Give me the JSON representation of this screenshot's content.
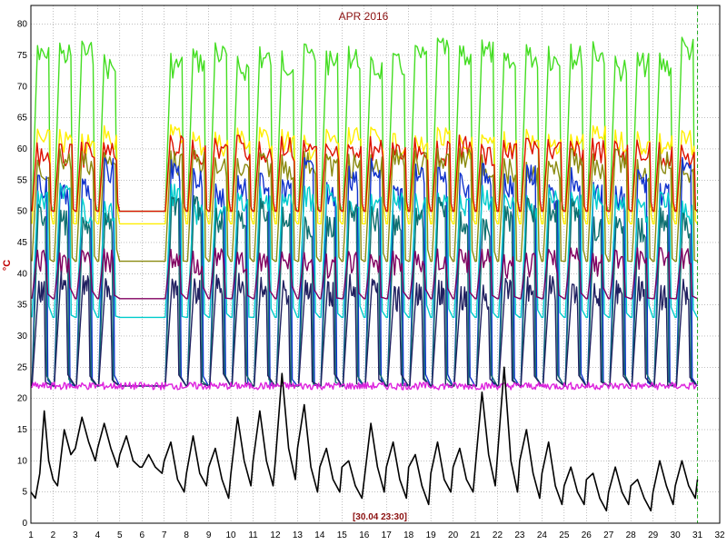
{
  "chart_data": {
    "type": "line",
    "title": "APR 2016",
    "ylabel": "°C",
    "xlim": [
      1,
      32
    ],
    "ylim": [
      0,
      83
    ],
    "x_ticks": [
      1,
      2,
      3,
      4,
      5,
      6,
      7,
      8,
      9,
      10,
      11,
      12,
      13,
      14,
      15,
      16,
      17,
      18,
      19,
      20,
      21,
      22,
      23,
      24,
      25,
      26,
      27,
      28,
      29,
      30,
      31,
      32
    ],
    "y_ticks": [
      0,
      5,
      10,
      15,
      20,
      25,
      30,
      35,
      40,
      45,
      50,
      55,
      60,
      65,
      70,
      75,
      80
    ],
    "grid": true,
    "cursor_label": "[30.04 23:30]",
    "cursor_x": 31.0,
    "colors": {
      "grid": "#7f7f7f",
      "cursor": "#22aa22",
      "title": "#8b1010"
    },
    "series": [
      {
        "color": "#44dd22",
        "kind": "daily",
        "base": 50,
        "peak": 78,
        "rise": 0.3,
        "fall": 0.8
      },
      {
        "color": "#ffee00",
        "kind": "daily",
        "base": 48,
        "peak": 64,
        "rise": 0.3,
        "fall": 0.85
      },
      {
        "color": "#dd1100",
        "kind": "daily",
        "base": 50,
        "peak": 62,
        "rise": 0.28,
        "fall": 0.85
      },
      {
        "color": "#8a8a10",
        "kind": "daily",
        "base": 42,
        "peak": 60,
        "rise": 0.3,
        "fall": 0.8
      },
      {
        "color": "#1133cc",
        "kind": "daily",
        "base": 22,
        "peak": 58,
        "rise": 0.32,
        "fall": 0.7
      },
      {
        "color": "#00cccc",
        "kind": "daily",
        "base": 33,
        "peak": 54,
        "rise": 0.32,
        "fall": 0.75
      },
      {
        "color": "#107070",
        "kind": "daily",
        "base": 22,
        "peak": 52,
        "rise": 0.34,
        "fall": 0.65
      },
      {
        "color": "#800060",
        "kind": "daily",
        "base": 36,
        "peak": 44,
        "rise": 0.3,
        "fall": 0.7
      },
      {
        "color": "#202060",
        "kind": "daily",
        "base": 22,
        "peak": 40,
        "rise": 0.36,
        "fall": 0.6
      },
      {
        "color": "#dd22dd",
        "kind": "flat",
        "base": 22,
        "noise": 0.6
      },
      {
        "color": "#000000",
        "kind": "outdoor",
        "x": [
          1.0,
          1.2,
          1.4,
          1.6,
          1.8,
          2.0,
          2.2,
          2.5,
          2.8,
          3.0,
          3.3,
          3.6,
          3.9,
          4.0,
          4.3,
          4.6,
          4.9,
          5.0,
          5.3,
          5.6,
          5.9,
          6.0,
          6.3,
          6.6,
          6.9,
          7.0,
          7.3,
          7.6,
          7.9,
          8.0,
          8.3,
          8.6,
          8.9,
          9.0,
          9.3,
          9.6,
          9.9,
          10.0,
          10.3,
          10.6,
          10.9,
          11.0,
          11.3,
          11.6,
          11.9,
          12.0,
          12.3,
          12.6,
          12.9,
          13.0,
          13.3,
          13.6,
          13.9,
          14.0,
          14.3,
          14.6,
          14.9,
          15.0,
          15.3,
          15.6,
          15.9,
          16.0,
          16.3,
          16.6,
          16.9,
          17.0,
          17.3,
          17.6,
          17.9,
          18.0,
          18.3,
          18.6,
          18.9,
          19.0,
          19.3,
          19.6,
          19.9,
          20.0,
          20.3,
          20.6,
          20.9,
          21.0,
          21.3,
          21.6,
          21.9,
          22.0,
          22.3,
          22.6,
          22.9,
          23.0,
          23.3,
          23.6,
          23.9,
          24.0,
          24.3,
          24.6,
          24.9,
          25.0,
          25.3,
          25.6,
          25.9,
          26.0,
          26.3,
          26.6,
          26.9,
          27.0,
          27.3,
          27.6,
          27.9,
          28.0,
          28.3,
          28.6,
          28.9,
          29.0,
          29.3,
          29.6,
          29.9,
          30.0,
          30.3,
          30.6,
          30.9,
          31.0
        ],
        "y": [
          5,
          4,
          8,
          18,
          10,
          7,
          6,
          15,
          11,
          12,
          17,
          13,
          10,
          12,
          16,
          12,
          9,
          11,
          14,
          10,
          9,
          9,
          11,
          9,
          8,
          10,
          13,
          7,
          5,
          8,
          14,
          8,
          6,
          9,
          12,
          7,
          4,
          8,
          17,
          10,
          6,
          10,
          18,
          10,
          6,
          10,
          24,
          12,
          7,
          12,
          19,
          9,
          5,
          9,
          12,
          7,
          5,
          9,
          10,
          6,
          4,
          7,
          16,
          9,
          5,
          9,
          13,
          7,
          4,
          9,
          11,
          6,
          3,
          8,
          13,
          7,
          5,
          9,
          12,
          7,
          5,
          9,
          21,
          11,
          6,
          11,
          25,
          10,
          5,
          10,
          15,
          8,
          4,
          8,
          13,
          6,
          3,
          6,
          9,
          5,
          3,
          7,
          8,
          4,
          2,
          5,
          9,
          5,
          3,
          6,
          7,
          4,
          2,
          5,
          10,
          6,
          3,
          6,
          10,
          6,
          4,
          7
        ]
      }
    ]
  }
}
